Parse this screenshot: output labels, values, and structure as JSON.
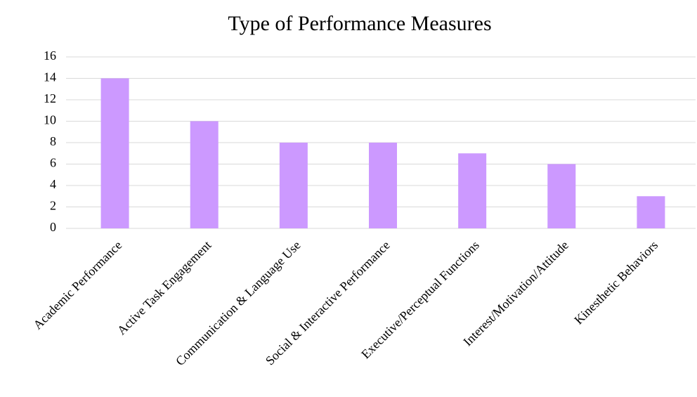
{
  "chart_data": {
    "type": "bar",
    "title": "Type of Performance Measures",
    "categories": [
      "Academic Performance",
      "Active Task Engagement",
      "Communication & Language Use",
      "Social & Interactive Performance",
      "Executive/Perceptual Functions",
      "Interest/Motivation/Attitude",
      "Kinesthetic Behaviors"
    ],
    "values": [
      14,
      10,
      8,
      8,
      7,
      6,
      3
    ],
    "color": "#cc99ff",
    "ylim": [
      0,
      16
    ],
    "yticks": [
      0,
      2,
      4,
      6,
      8,
      10,
      12,
      14,
      16
    ],
    "grid": true
  }
}
